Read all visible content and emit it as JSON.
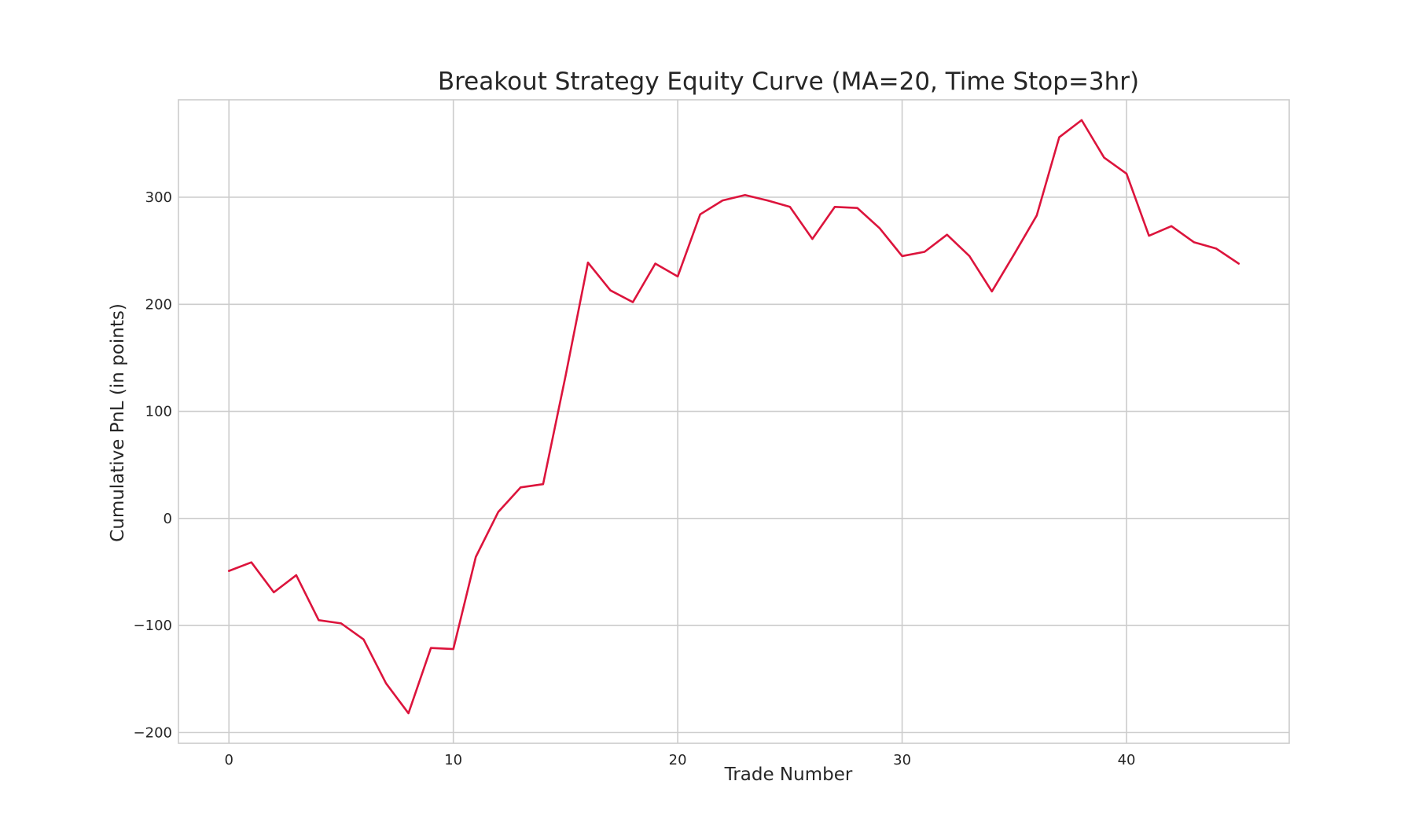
{
  "chart_data": {
    "type": "line",
    "title": "Breakout Strategy Equity Curve (MA=20, Time Stop=3hr)",
    "xlabel": "Trade Number",
    "ylabel": "Cumulative PnL (in points)",
    "xlim": [
      -2.25,
      47.25
    ],
    "ylim": [
      -210,
      391
    ],
    "xticks": [
      0,
      10,
      20,
      30,
      40
    ],
    "yticks": [
      -200,
      -100,
      0,
      100,
      200,
      300
    ],
    "xtick_labels": [
      "0",
      "10",
      "20",
      "30",
      "40"
    ],
    "ytick_labels": [
      "−200",
      "−100",
      "0",
      "100",
      "200",
      "300"
    ],
    "grid": true,
    "line_color": "#dc143c",
    "series": [
      {
        "x": [
          0,
          1,
          2,
          3,
          4,
          5,
          6,
          7,
          8,
          9,
          10,
          11,
          12,
          13,
          14,
          15,
          16,
          17,
          18,
          19,
          20,
          21,
          22,
          23,
          24,
          25,
          26,
          27,
          28,
          29,
          30,
          31,
          32,
          33,
          34,
          35,
          36,
          37,
          38,
          39,
          40,
          41,
          42,
          43,
          44,
          45
        ],
        "values": [
          -49,
          -41,
          -69,
          -53,
          -95,
          -98,
          -113,
          -154,
          -182,
          -121,
          -122,
          -36,
          6,
          29,
          32,
          133,
          239,
          213,
          202,
          238,
          226,
          284,
          297,
          302,
          297,
          291,
          261,
          291,
          290,
          271,
          245,
          249,
          265,
          245,
          212,
          247,
          283,
          356,
          372,
          337,
          322,
          264,
          273,
          258,
          252,
          238
        ]
      }
    ]
  }
}
